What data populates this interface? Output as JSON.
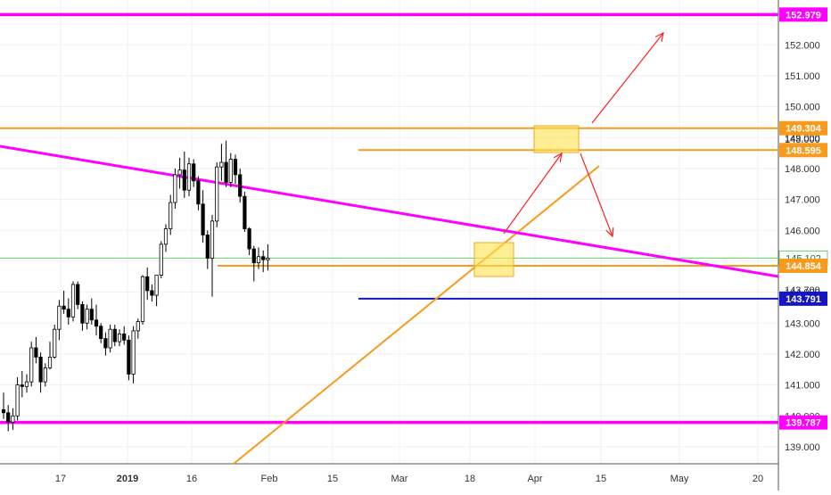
{
  "colors": {
    "magenta": "#ff00ff",
    "orange": "#f89a1c",
    "navy": "#1515c8",
    "red_arrow": "#ff2020",
    "zone_fill": "#ffe24d",
    "zone_stroke": "#f5a623",
    "green": "#67d567",
    "candle": "#000000",
    "grid": "#eef0f3",
    "axis_text": "#333333"
  },
  "chart_data": {
    "type": "candlestick",
    "y_axis": {
      "min": 138.45,
      "max": 153.45,
      "tick_labels": [
        "152.000",
        "151.000",
        "150.000",
        "149.000",
        "148.000",
        "147.000",
        "146.000",
        "145.000",
        "144.000",
        "143.000",
        "142.000",
        "141.000",
        "140.000",
        "139.000"
      ],
      "tick_values": [
        152,
        151,
        150,
        149,
        148,
        147,
        146,
        145,
        144,
        143,
        142,
        141,
        140,
        139
      ]
    },
    "x_axis": {
      "labels": [
        {
          "text": "17",
          "pos": 68
        },
        {
          "text": "2019",
          "pos": 143,
          "bold": true
        },
        {
          "text": "16",
          "pos": 215
        },
        {
          "text": "Feb",
          "pos": 302
        },
        {
          "text": "15",
          "pos": 373
        },
        {
          "text": "Mar",
          "pos": 448
        },
        {
          "text": "18",
          "pos": 527
        },
        {
          "text": "Apr",
          "pos": 600
        },
        {
          "text": "15",
          "pos": 674
        },
        {
          "text": "May",
          "pos": 762
        },
        {
          "text": "20",
          "pos": 850
        }
      ]
    },
    "candles": [
      [
        140.2,
        140.75,
        139.9,
        140.1
      ],
      [
        140.1,
        140.35,
        139.5,
        139.8
      ],
      [
        139.8,
        140.25,
        139.55,
        140.0
      ],
      [
        140.0,
        141.25,
        139.85,
        141.0
      ],
      [
        141.0,
        141.45,
        140.6,
        140.95
      ],
      [
        140.95,
        141.35,
        140.75,
        141.1
      ],
      [
        141.1,
        142.4,
        140.95,
        142.2
      ],
      [
        142.2,
        142.55,
        141.7,
        141.9
      ],
      [
        141.9,
        142.05,
        140.75,
        141.1
      ],
      [
        141.1,
        141.7,
        140.95,
        141.55
      ],
      [
        141.55,
        142.4,
        141.5,
        141.9
      ],
      [
        141.9,
        142.95,
        141.85,
        142.8
      ],
      [
        142.8,
        143.75,
        142.45,
        143.55
      ],
      [
        143.55,
        144.05,
        143.3,
        143.45
      ],
      [
        143.45,
        143.8,
        142.95,
        143.2
      ],
      [
        143.2,
        144.35,
        143.05,
        144.25
      ],
      [
        144.25,
        144.35,
        143.45,
        143.6
      ],
      [
        143.6,
        143.7,
        142.75,
        143.0
      ],
      [
        143.0,
        143.6,
        142.8,
        143.45
      ],
      [
        143.45,
        143.8,
        142.95,
        143.1
      ],
      [
        143.1,
        143.6,
        142.6,
        142.9
      ],
      [
        142.9,
        143.0,
        142.35,
        142.5
      ],
      [
        142.5,
        142.7,
        141.95,
        142.2
      ],
      [
        142.2,
        142.95,
        142.05,
        142.8
      ],
      [
        142.8,
        142.95,
        142.25,
        142.4
      ],
      [
        142.4,
        142.8,
        142.25,
        142.65
      ],
      [
        142.65,
        142.9,
        142.3,
        142.45
      ],
      [
        142.45,
        142.6,
        141.15,
        141.35
      ],
      [
        141.35,
        142.9,
        141.05,
        142.75
      ],
      [
        142.75,
        143.15,
        142.5,
        143.05
      ],
      [
        143.05,
        144.55,
        142.95,
        144.5
      ],
      [
        144.5,
        144.8,
        143.75,
        144.05
      ],
      [
        144.05,
        144.25,
        143.7,
        143.9
      ],
      [
        143.9,
        144.55,
        143.55,
        144.55
      ],
      [
        144.55,
        145.65,
        144.45,
        145.55
      ],
      [
        145.55,
        146.2,
        145.3,
        146.05
      ],
      [
        146.05,
        147.15,
        145.85,
        146.9
      ],
      [
        146.9,
        148.0,
        146.7,
        147.8
      ],
      [
        147.8,
        148.35,
        147.35,
        147.95
      ],
      [
        147.95,
        148.55,
        147.05,
        147.3
      ],
      [
        147.3,
        148.35,
        147.1,
        148.15
      ],
      [
        148.15,
        148.3,
        147.4,
        147.6
      ],
      [
        147.6,
        147.75,
        146.65,
        146.85
      ],
      [
        146.85,
        147.3,
        145.6,
        145.85
      ],
      [
        145.85,
        146.0,
        144.75,
        145.1
      ],
      [
        145.1,
        146.5,
        143.85,
        146.3
      ],
      [
        146.3,
        148.2,
        146.1,
        148.05
      ],
      [
        148.05,
        148.8,
        147.6,
        148.2
      ],
      [
        148.2,
        148.9,
        147.4,
        147.55
      ],
      [
        147.55,
        148.5,
        147.4,
        148.3
      ],
      [
        148.3,
        148.45,
        147.5,
        147.8
      ],
      [
        147.8,
        148.0,
        146.9,
        147.1
      ],
      [
        147.1,
        147.25,
        145.95,
        146.05
      ],
      [
        146.05,
        146.1,
        145.2,
        145.4
      ],
      [
        145.4,
        145.5,
        144.35,
        144.95
      ],
      [
        144.95,
        145.45,
        144.75,
        145.15
      ],
      [
        145.15,
        145.35,
        144.65,
        145.05
      ],
      [
        145.05,
        145.55,
        144.7,
        145.1
      ]
    ],
    "candle_start_x": 4,
    "candle_step": 5.2,
    "horizontal_lines": [
      {
        "value": 152.979,
        "color": "magenta",
        "width": 3.5,
        "label": "152.979"
      },
      {
        "value": 149.304,
        "color": "orange",
        "width": 2,
        "label": "149.304"
      },
      {
        "value": 148.595,
        "color": "orange",
        "width": 2,
        "label": "148.595",
        "x_start": 402
      },
      {
        "value": 145.102,
        "color": "green",
        "width": 1,
        "label": "145.102"
      },
      {
        "value": 144.854,
        "color": "orange",
        "width": 2,
        "label": "144.854",
        "x_start": 244
      },
      {
        "value": 143.791,
        "color": "navy",
        "width": 2,
        "label": "143.791",
        "x_start": 402
      },
      {
        "value": 139.787,
        "color": "magenta",
        "width": 3.5,
        "label": "139.787"
      }
    ],
    "hidden_labels": [
      "148.000",
      "143.700"
    ]
  }
}
